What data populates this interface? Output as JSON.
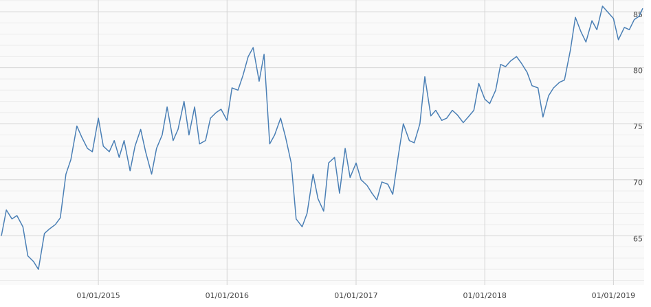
{
  "chart_data": {
    "type": "line",
    "x": [
      "2014-04-01",
      "2014-04-15",
      "2014-05-01",
      "2014-05-15",
      "2014-06-01",
      "2014-06-15",
      "2014-07-01",
      "2014-07-15",
      "2014-08-01",
      "2014-08-15",
      "2014-09-01",
      "2014-09-15",
      "2014-10-01",
      "2014-10-15",
      "2014-11-01",
      "2014-11-15",
      "2014-12-01",
      "2014-12-15",
      "2015-01-01",
      "2015-01-15",
      "2015-02-01",
      "2015-02-15",
      "2015-03-01",
      "2015-03-15",
      "2015-04-01",
      "2015-04-15",
      "2015-05-01",
      "2015-05-15",
      "2015-06-01",
      "2015-06-15",
      "2015-07-01",
      "2015-07-15",
      "2015-08-01",
      "2015-08-15",
      "2015-09-01",
      "2015-09-15",
      "2015-10-01",
      "2015-10-15",
      "2015-11-01",
      "2015-11-15",
      "2015-12-01",
      "2015-12-15",
      "2016-01-01",
      "2016-01-15",
      "2016-02-01",
      "2016-02-15",
      "2016-03-01",
      "2016-03-15",
      "2016-04-01",
      "2016-04-15",
      "2016-05-01",
      "2016-05-15",
      "2016-06-01",
      "2016-06-15",
      "2016-07-01",
      "2016-07-15",
      "2016-08-01",
      "2016-08-15",
      "2016-09-01",
      "2016-09-15",
      "2016-10-01",
      "2016-10-15",
      "2016-11-01",
      "2016-11-15",
      "2016-12-01",
      "2016-12-15",
      "2017-01-01",
      "2017-01-15",
      "2017-02-01",
      "2017-02-15",
      "2017-03-01",
      "2017-03-15",
      "2017-04-01",
      "2017-04-15",
      "2017-05-01",
      "2017-05-15",
      "2017-06-01",
      "2017-06-15",
      "2017-07-01",
      "2017-07-15",
      "2017-08-01",
      "2017-08-15",
      "2017-09-01",
      "2017-09-15",
      "2017-10-01",
      "2017-10-15",
      "2017-11-01",
      "2017-11-15",
      "2017-12-01",
      "2017-12-15",
      "2018-01-01",
      "2018-01-15",
      "2018-02-01",
      "2018-02-15",
      "2018-03-01",
      "2018-03-15",
      "2018-04-01",
      "2018-04-15",
      "2018-05-01",
      "2018-05-15",
      "2018-06-01",
      "2018-06-15",
      "2018-07-01",
      "2018-07-15",
      "2018-08-01",
      "2018-08-15",
      "2018-09-01",
      "2018-09-15",
      "2018-10-01",
      "2018-10-15",
      "2018-11-01",
      "2018-11-15",
      "2018-12-01",
      "2018-12-15",
      "2019-01-01",
      "2019-01-15",
      "2019-02-01",
      "2019-02-15",
      "2019-03-01",
      "2019-03-15",
      "2019-03-25"
    ],
    "series": [
      {
        "color": "#4a7fb5",
        "values": [
          65.0,
          67.3,
          66.5,
          66.8,
          65.8,
          63.2,
          62.7,
          62.0,
          65.2,
          65.6,
          66.0,
          66.6,
          70.5,
          71.8,
          74.8,
          73.8,
          72.8,
          72.5,
          75.5,
          73.0,
          72.5,
          73.5,
          72.0,
          73.5,
          70.8,
          73.0,
          74.5,
          72.5,
          70.5,
          72.8,
          74.0,
          76.5,
          73.5,
          74.5,
          77.0,
          74.0,
          76.5,
          73.2,
          73.5,
          75.5,
          76.0,
          76.3,
          75.3,
          78.2,
          78.0,
          79.3,
          81.0,
          81.8,
          78.8,
          81.2,
          73.2,
          74.0,
          75.5,
          73.8,
          71.5,
          66.5,
          65.8,
          67.0,
          70.5,
          68.3,
          67.2,
          71.5,
          72.0,
          68.8,
          72.8,
          70.2,
          71.5,
          70.0,
          69.5,
          68.8,
          68.2,
          69.8,
          69.6,
          68.7,
          72.2,
          75.0,
          73.5,
          73.3,
          75.0,
          79.2,
          75.7,
          76.2,
          75.3,
          75.5,
          76.2,
          75.8,
          75.1,
          75.6,
          76.2,
          78.6,
          77.2,
          76.8,
          78.0,
          80.3,
          80.1,
          80.6,
          81.0,
          80.4,
          79.6,
          78.4,
          78.2,
          75.6,
          77.5,
          78.2,
          78.7,
          78.9,
          81.6,
          84.5,
          83.2,
          82.3,
          84.2,
          83.4,
          85.5,
          85.0,
          84.4,
          82.5,
          83.6,
          83.4,
          84.3,
          84.6,
          85.3
        ]
      }
    ],
    "xlim": [
      "2014-03-28",
      "2019-03-29"
    ],
    "xticks": [
      {
        "value": "2015-01-01",
        "label": "01/01/2015"
      },
      {
        "value": "2016-01-01",
        "label": "01/01/2016"
      },
      {
        "value": "2017-01-01",
        "label": "01/01/2017"
      },
      {
        "value": "2018-01-01",
        "label": "01/01/2018"
      },
      {
        "value": "2019-01-01",
        "label": "01/01/2019"
      }
    ],
    "ylim": [
      60.6,
      86.05
    ],
    "yticks": [
      65,
      70,
      75,
      80,
      85
    ],
    "minor_yticks": [
      61,
      62,
      63,
      64,
      66,
      67,
      68,
      69,
      71,
      72,
      73,
      74,
      76,
      77,
      78,
      79,
      81,
      82,
      83,
      84,
      86
    ],
    "grid": true
  }
}
